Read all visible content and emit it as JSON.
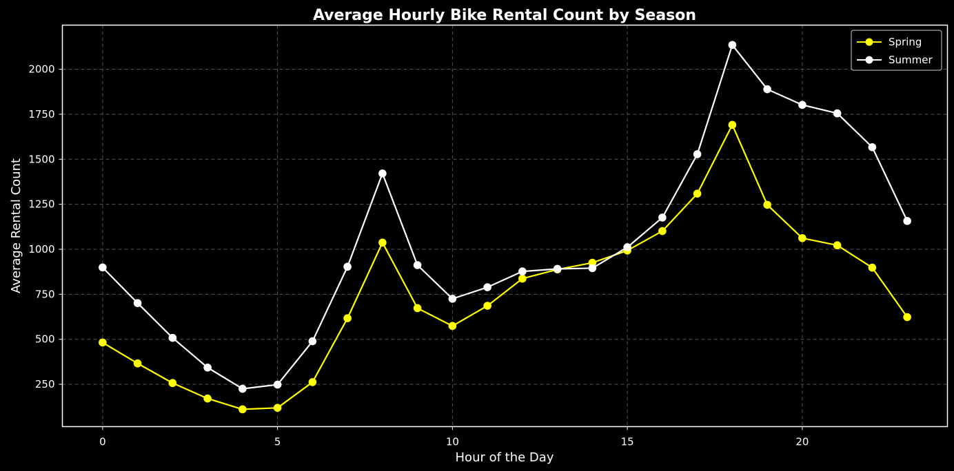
{
  "chart_data": {
    "type": "line",
    "title": "Average Hourly Bike Rental Count by Season",
    "xlabel": "Hour of the Day",
    "ylabel": "Average Rental Count",
    "x": [
      0,
      1,
      2,
      3,
      4,
      5,
      6,
      7,
      8,
      9,
      10,
      11,
      12,
      13,
      14,
      15,
      16,
      17,
      18,
      19,
      20,
      21,
      22,
      23
    ],
    "xlim": [
      -1.15,
      24.15
    ],
    "ylim": [
      15,
      2245
    ],
    "xticks": [
      "0",
      "5",
      "10",
      "15",
      "20"
    ],
    "yticks": [
      "250",
      "500",
      "750",
      "1000",
      "1250",
      "1500",
      "1750",
      "2000"
    ],
    "grid": true,
    "legend_position": "top-right",
    "series": [
      {
        "name": "Spring",
        "color": "#ffff00",
        "values": [
          482,
          366,
          257,
          171,
          111,
          119,
          262,
          617,
          1037,
          673,
          574,
          686,
          837,
          888,
          925,
          993,
          1101,
          1309,
          1691,
          1247,
          1062,
          1022,
          898,
          623
        ]
      },
      {
        "name": "Summer",
        "color": "#ffffff",
        "values": [
          899,
          701,
          508,
          343,
          225,
          248,
          489,
          903,
          1421,
          912,
          725,
          789,
          877,
          891,
          895,
          1011,
          1176,
          1528,
          2135,
          1889,
          1802,
          1755,
          1567,
          1157
        ]
      }
    ]
  }
}
